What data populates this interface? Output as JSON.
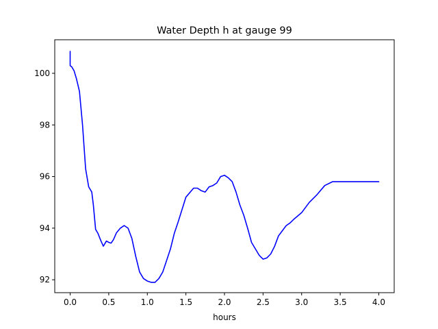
{
  "chart_data": {
    "type": "line",
    "title": "Water Depth h at gauge 99",
    "xlabel": "hours",
    "ylabel": "",
    "xlim": [
      -0.2,
      4.2
    ],
    "ylim": [
      91.5,
      101.3
    ],
    "xticks": [
      0.0,
      0.5,
      1.0,
      1.5,
      2.0,
      2.5,
      3.0,
      3.5,
      4.0
    ],
    "xtick_labels": [
      "0.0",
      "0.5",
      "1.0",
      "1.5",
      "2.0",
      "2.5",
      "3.0",
      "3.5",
      "4.0"
    ],
    "yticks": [
      92,
      94,
      96,
      98,
      100
    ],
    "ytick_labels": [
      "92",
      "94",
      "96",
      "98",
      "100"
    ],
    "grid": false,
    "series": [
      {
        "color": "#0000ff",
        "x": [
          0.0,
          0.0,
          0.0,
          0.02,
          0.05,
          0.08,
          0.12,
          0.16,
          0.2,
          0.24,
          0.28,
          0.3,
          0.33,
          0.36,
          0.4,
          0.43,
          0.47,
          0.5,
          0.53,
          0.56,
          0.6,
          0.65,
          0.7,
          0.75,
          0.8,
          0.85,
          0.9,
          0.95,
          1.0,
          1.05,
          1.1,
          1.15,
          1.2,
          1.25,
          1.3,
          1.35,
          1.4,
          1.5,
          1.6,
          1.65,
          1.7,
          1.75,
          1.8,
          1.85,
          1.9,
          1.95,
          2.0,
          2.05,
          2.1,
          2.15,
          2.2,
          2.25,
          2.3,
          2.35,
          2.4,
          2.45,
          2.5,
          2.55,
          2.6,
          2.65,
          2.7,
          2.8,
          2.85,
          2.9,
          3.0,
          3.1,
          3.2,
          3.3,
          3.4,
          3.5,
          3.6,
          3.7,
          3.8,
          3.9,
          3.95,
          4.0
        ],
        "y": [
          100.85,
          100.3,
          100.3,
          100.25,
          100.1,
          99.8,
          99.3,
          98.0,
          96.3,
          95.6,
          95.4,
          94.9,
          93.95,
          93.8,
          93.5,
          93.3,
          93.5,
          93.45,
          93.42,
          93.55,
          93.82,
          94.0,
          94.1,
          94.0,
          93.6,
          92.9,
          92.3,
          92.05,
          91.95,
          91.9,
          91.9,
          92.05,
          92.3,
          92.75,
          93.2,
          93.8,
          94.25,
          95.2,
          95.55,
          95.55,
          95.45,
          95.4,
          95.6,
          95.65,
          95.75,
          96.0,
          96.05,
          95.95,
          95.8,
          95.4,
          94.9,
          94.5,
          94.0,
          93.45,
          93.2,
          92.95,
          92.8,
          92.85,
          93.0,
          93.3,
          93.7,
          94.1,
          94.2,
          94.35,
          94.6,
          95.0,
          95.3,
          95.65,
          95.8,
          95.8,
          95.8,
          95.8,
          95.8,
          95.8,
          95.8,
          95.8
        ]
      }
    ]
  }
}
